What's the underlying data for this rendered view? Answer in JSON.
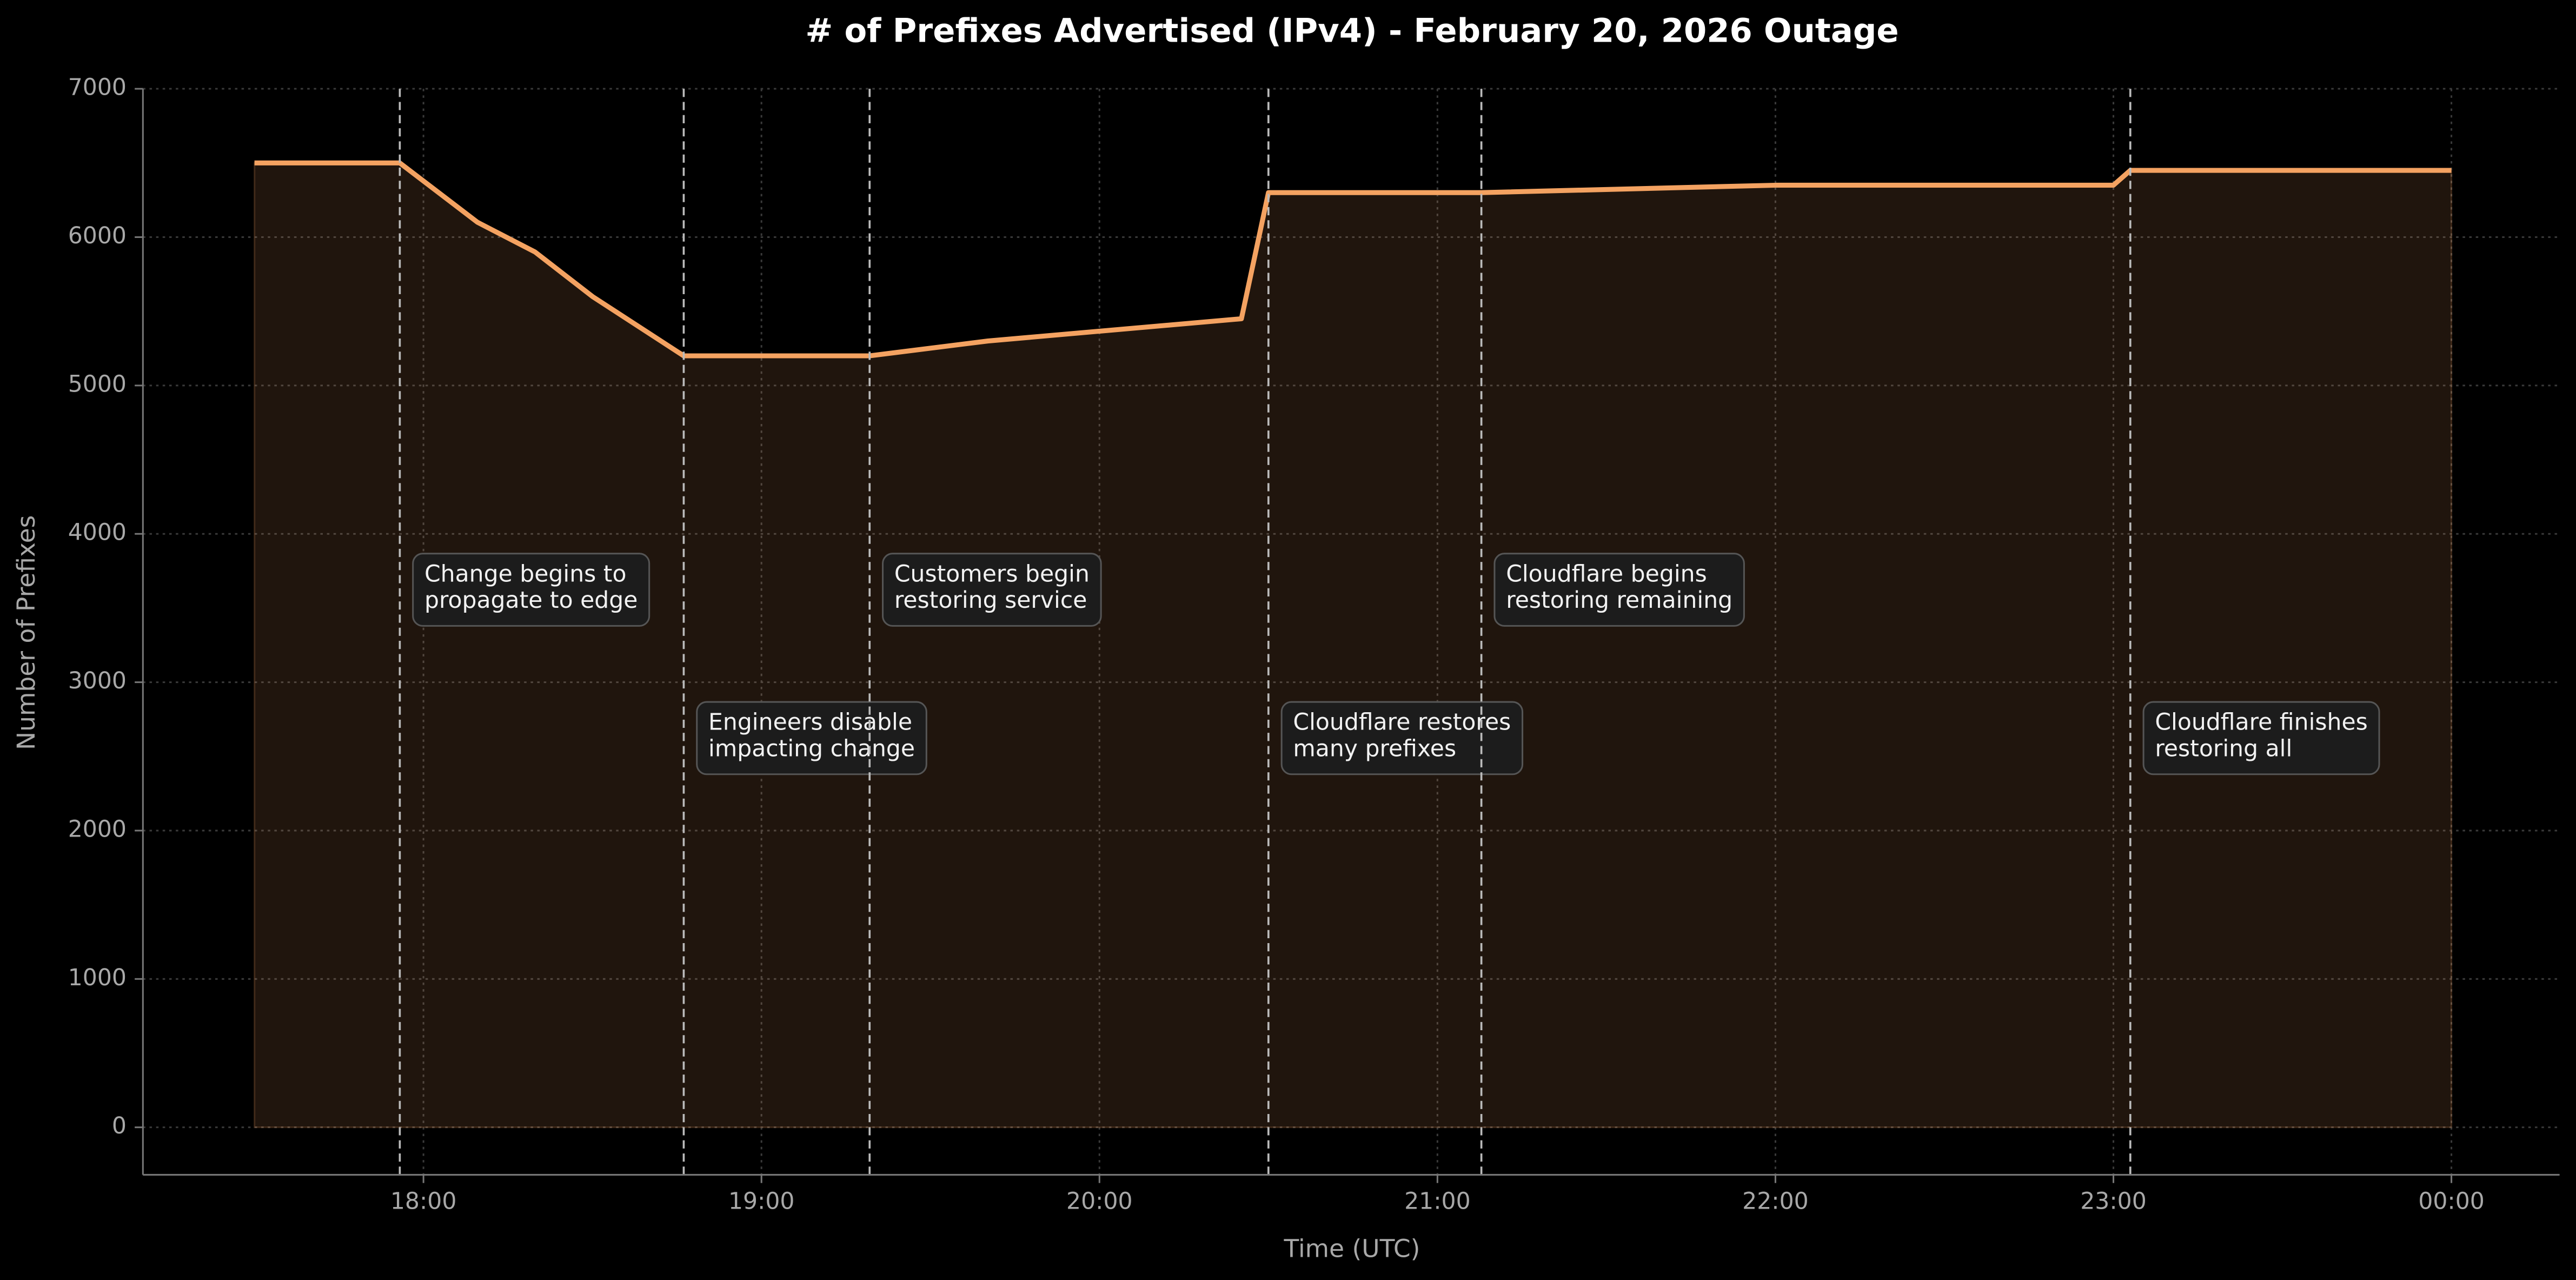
{
  "chart_data": {
    "type": "area-line",
    "title": "# of Prefixes Advertised (IPv4) - February 20, 2026 Outage",
    "x_label": "Time (UTC)",
    "y_label": "Number of Prefixes",
    "x": [
      17.5,
      17.93,
      18.16,
      18.33,
      18.5,
      18.77,
      19.32,
      19.67,
      20.42,
      20.5,
      21.13,
      22.0,
      23.0,
      23.05,
      24.0
    ],
    "values": [
      6500,
      6500,
      6100,
      5900,
      5600,
      5200,
      5200,
      5300,
      5450,
      6300,
      6300,
      6350,
      6350,
      6450,
      6450
    ],
    "color": "#f4a261",
    "xlim": [
      17.17,
      24.32
    ],
    "xticks": [
      {
        "value": 18,
        "label": "18:00"
      },
      {
        "value": 19,
        "label": "19:00"
      },
      {
        "value": 20,
        "label": "20:00"
      },
      {
        "value": 21,
        "label": "21:00"
      },
      {
        "value": 22,
        "label": "22:00"
      },
      {
        "value": 23,
        "label": "23:00"
      },
      {
        "value": 24,
        "label": "00:00"
      }
    ],
    "ylim": [
      -320,
      7000
    ],
    "yticks": [
      0,
      1000,
      2000,
      3000,
      4000,
      5000,
      6000,
      7000
    ],
    "grid": true,
    "annotations": [
      {
        "x": 17.93,
        "text": [
          "Change begins to",
          "propagate to edge"
        ]
      },
      {
        "x": 18.77,
        "text": [
          "Engineers disable",
          "impacting change"
        ]
      },
      {
        "x": 19.32,
        "text": [
          "Customers begin",
          "restoring service"
        ]
      },
      {
        "x": 20.5,
        "text": [
          "Cloudflare restores",
          "many prefixes"
        ]
      },
      {
        "x": 21.13,
        "text": [
          "Cloudflare begins",
          "restoring remaining"
        ]
      },
      {
        "x": 23.05,
        "text": [
          "Cloudflare finishes",
          "restoring all"
        ]
      }
    ]
  }
}
